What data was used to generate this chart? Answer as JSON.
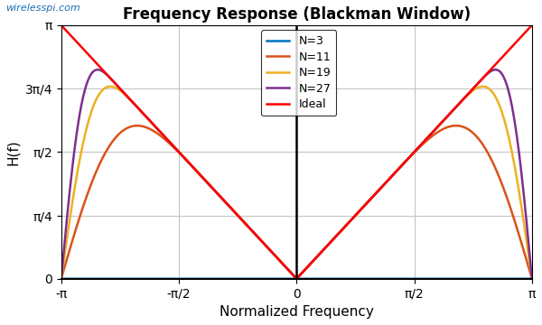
{
  "title": "Frequency Response (Blackman Window)",
  "xlabel": "Normalized Frequency",
  "ylabel": "H(f)",
  "watermark": "wirelesspi.com",
  "N_values": [
    3,
    11,
    19,
    27
  ],
  "colors": {
    "N3": "#0072BD",
    "N11": "#D95319",
    "N19": "#EDB120",
    "N27": "#7E2F8E",
    "Ideal": "#FF0000"
  },
  "line_width": 1.8,
  "xlim": [
    -3.14159265358979,
    3.14159265358979
  ],
  "ylim": [
    0,
    3.14159265358979
  ],
  "legend_labels": [
    "N=3",
    "N=11",
    "N=19",
    "N=27",
    "Ideal"
  ],
  "ytick_positions": [
    0,
    0.7853981633974483,
    1.5707963267948966,
    2.356194490192345,
    3.14159265358979
  ],
  "ytick_labels": [
    "0",
    "π/4",
    "π/2",
    "3π/4",
    "π"
  ],
  "xtick_positions": [
    -3.14159265358979,
    -1.5707963267948966,
    0,
    1.5707963267948966,
    3.14159265358979
  ],
  "xtick_labels": [
    "-π",
    "-π/2",
    "0",
    "π/2",
    "π"
  ],
  "background_color": "#FFFFFF",
  "grid_color": "#C0C0C0",
  "watermark_color": "#1a6eb5",
  "title_fontsize": 12,
  "label_fontsize": 11,
  "tick_fontsize": 10,
  "legend_fontsize": 9
}
